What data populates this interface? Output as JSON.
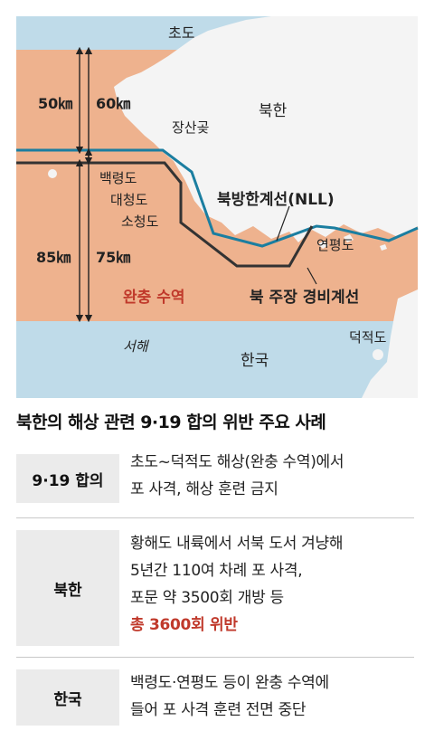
{
  "map": {
    "labels": {
      "chodo": "초도",
      "north_korea": "북한",
      "jangsangot": "장산곶",
      "baengnyeongdo": "백령도",
      "daecheongdo": "대청도",
      "socheongdo": "소청도",
      "nll": "북방한계선(NLL)",
      "yeonpyeongdo": "연평도",
      "buffer_zone": "완충 수역",
      "nk_claimed_line": "북 주장 경비계선",
      "deokjeokdo": "덕적도",
      "west_sea": "서해",
      "south_korea": "한국"
    },
    "distances": {
      "north_50": "50㎞",
      "north_60": "60㎞",
      "south_85": "85㎞",
      "south_75": "75㎞"
    },
    "colors": {
      "sea": "#bfdbe9",
      "buffer": "#eeb28e",
      "land": "#f4f4f4",
      "nll_line": "#1b7ea0",
      "claimed_line": "#333333",
      "accent_red": "#c0392b"
    }
  },
  "table": {
    "title": "북한의 해상 관련 9·19 합의 위반 주요 사례",
    "rows": [
      {
        "label": "9·19 합의",
        "lines": [
          "초도~덕적도 해상(완충 수역)에서",
          "포 사격, 해상 훈련 금지"
        ]
      },
      {
        "label": "북한",
        "lines": [
          "황해도 내륙에서 서북 도서 겨냥해",
          "5년간 110여 차례 포 사격,",
          "포문 약 3500회 개방 등"
        ],
        "highlight": "총 3600회 위반"
      },
      {
        "label": "한국",
        "lines": [
          "백령도·연평도 등이 완충 수역에",
          "들어 포 사격 훈련 전면 중단"
        ]
      }
    ]
  }
}
